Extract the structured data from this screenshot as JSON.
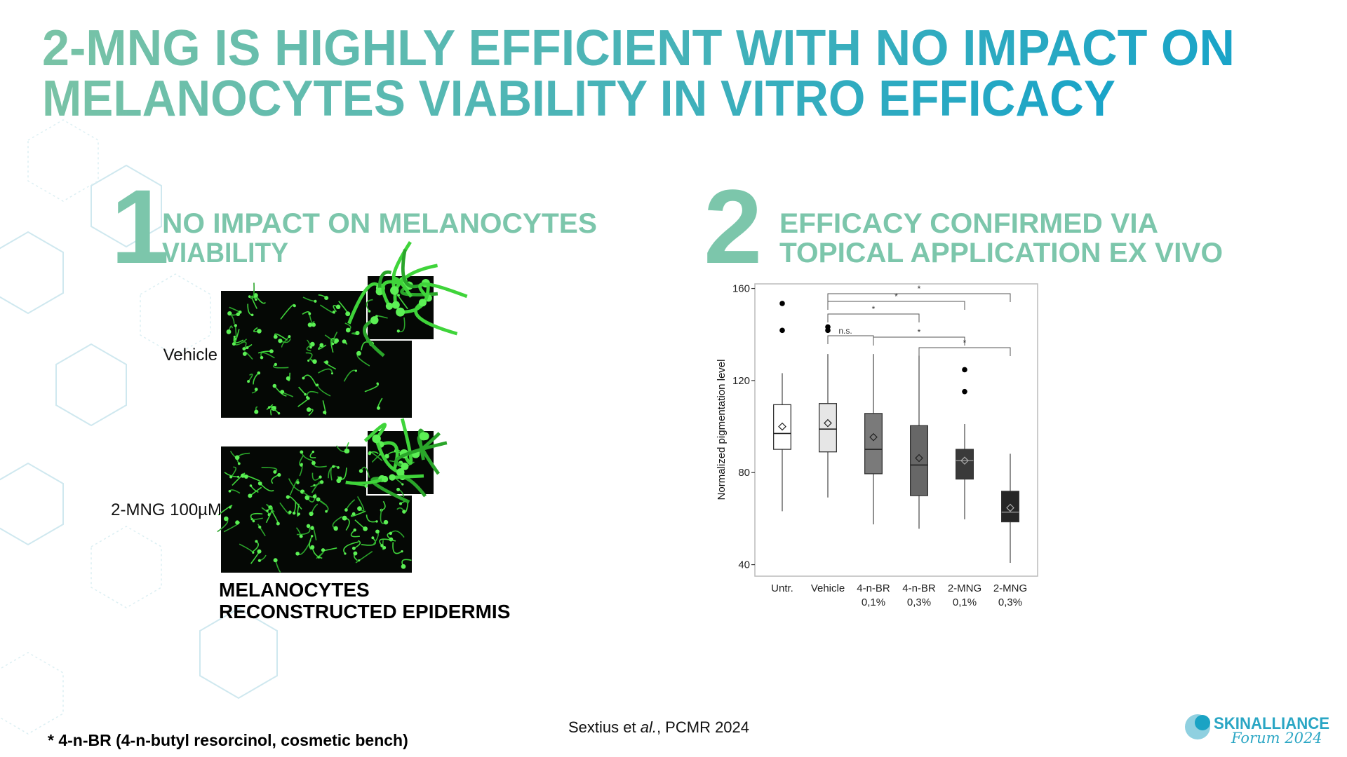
{
  "title": {
    "lines": [
      "2-MNG IS HIGHLY EFFICIENT WITH NO IMPACT ON",
      "MELANOCYTES VIABILITY IN VITRO EFFICACY"
    ]
  },
  "section1": {
    "number": "1",
    "heading": [
      "NO IMPACT ON MELANOCYTES",
      "VIABILITY"
    ],
    "image_labels": [
      "Vehicle",
      "2-MNG 100µM"
    ],
    "caption": [
      "MELANOCYTES",
      "RECONSTRUCTED EPIDERMIS"
    ]
  },
  "section2": {
    "number": "2",
    "heading": [
      "EFFICACY CONFIRMED VIA",
      "TOPICAL APPLICATION EX VIVO"
    ]
  },
  "chart_data": {
    "type": "box",
    "y_label": "Normalized pigmentation level",
    "categories": [
      [
        "Untr."
      ],
      [
        "Vehicle"
      ],
      [
        "4-n-BR",
        "0,1%"
      ],
      [
        "4-n-BR",
        "0,3%"
      ],
      [
        "2-MNG",
        "0,1%"
      ],
      [
        "2-MNG",
        "0,3%"
      ]
    ],
    "ylim": [
      35,
      162
    ],
    "yticks": [
      40,
      80,
      120,
      160
    ],
    "grid": false,
    "colors": [
      "#ffffff",
      "#e6e6e6",
      "#7a7a7a",
      "#676767",
      "#3a3a3a",
      "#262626"
    ],
    "boxes": [
      {
        "whisker_low": 63.2,
        "q1": 90.1,
        "median": 97,
        "q3": 109.5,
        "whisker_high": 123.2,
        "mean": 100,
        "outliers": [
          153.5,
          141.8
        ]
      },
      {
        "whisker_low": 69.2,
        "q1": 89,
        "median": 98.9,
        "q3": 110,
        "whisker_high": 131.5,
        "mean": 101.5,
        "outliers": [
          143.3,
          141.8
        ]
      },
      {
        "whisker_low": 57.5,
        "q1": 79.5,
        "median": 90.1,
        "q3": 105.7,
        "whisker_high": 131.5,
        "mean": 95.4,
        "outliers": []
      },
      {
        "whisker_low": 55.6,
        "q1": 70,
        "median": 83.3,
        "q3": 100.4,
        "whisker_high": 130.8,
        "mean": 86.3,
        "outliers": []
      },
      {
        "whisker_low": 59.7,
        "q1": 77.2,
        "median": 85.2,
        "q3": 90.1,
        "whisker_high": 101.1,
        "mean": 85.2,
        "outliers": [
          124.7,
          115.2
        ]
      },
      {
        "whisker_low": 40.8,
        "q1": 58.6,
        "median": 62.8,
        "q3": 71.9,
        "whisker_high": 88.2,
        "mean": 64.7,
        "outliers": []
      }
    ],
    "significance": [
      {
        "groups": [
          1,
          5
        ],
        "label": "*"
      },
      {
        "groups": [
          1,
          4
        ],
        "label": "*"
      },
      {
        "groups": [
          1,
          3
        ],
        "label": "*"
      },
      {
        "groups": [
          1,
          2
        ],
        "label": "n.s."
      },
      {
        "groups": [
          2,
          4
        ],
        "label": "*"
      },
      {
        "groups": [
          3,
          5
        ],
        "label": "*"
      }
    ]
  },
  "footnote": "* 4-n-BR (4-n-butyl resorcinol, cosmetic bench)",
  "citation": [
    "Sextius et ",
    "al.",
    ", PCMR 2024"
  ],
  "logo": {
    "name": "SKINALLIANCE",
    "subtitle": "Forum 2024"
  }
}
